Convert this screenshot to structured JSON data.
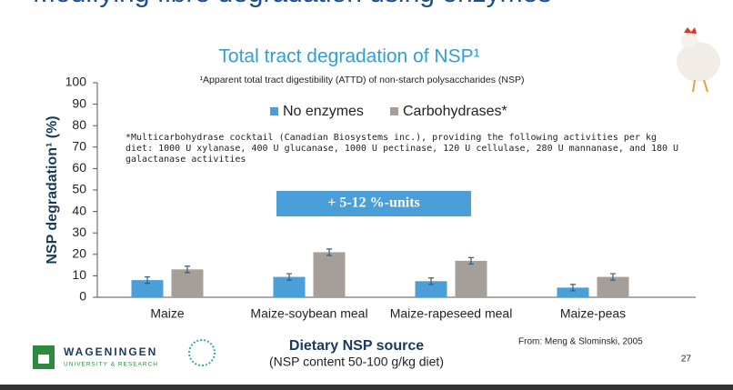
{
  "slide": {
    "title": "Modifying fibre degradation using enzymes",
    "logo_name": "WAGENINGEN",
    "logo_sub": "UNIVERSITY & RESEARCH",
    "source": "From: Meng & Slominski, 2005",
    "page": "27"
  },
  "chart_data": {
    "type": "bar",
    "title": "Total tract degradation of NSP¹",
    "footnote": "¹Apparent total tract digestibility (ATTD) of non-starch polysaccharides (NSP)",
    "note": "*Multicarbohydrase cocktail (Canadian Biosystems inc.), providing the following activities per kg diet: 1000 U xylanase, 400 U glucanase, 1000 U pectinase, 120 U cellulase, 280 U mannanase, and 180 U galactanase activities",
    "annotation": "+ 5-12 %-units",
    "x_label": "Dietary NSP source",
    "x_sublabel": "(NSP content 50-100 g/kg diet)",
    "y_label": "NSP degradation¹ (%)",
    "categories": [
      "Maize",
      "Maize-soybean meal",
      "Maize-rapeseed meal",
      "Maize-peas"
    ],
    "series": [
      {
        "name": "No enzymes",
        "color": "#4a9fd8",
        "values": [
          8,
          9.5,
          7.5,
          4.5
        ],
        "errors": [
          1.5,
          1.5,
          1.5,
          1.5
        ]
      },
      {
        "name": "Carbohydrases*",
        "color": "#a69e98",
        "values": [
          13,
          21,
          17,
          9.5
        ],
        "errors": [
          1.5,
          1.5,
          1.5,
          1.5
        ]
      }
    ],
    "ylim": [
      0,
      100
    ],
    "yticks": [
      0,
      10,
      20,
      30,
      40,
      50,
      60,
      70,
      80,
      90,
      100
    ],
    "grid": false
  }
}
